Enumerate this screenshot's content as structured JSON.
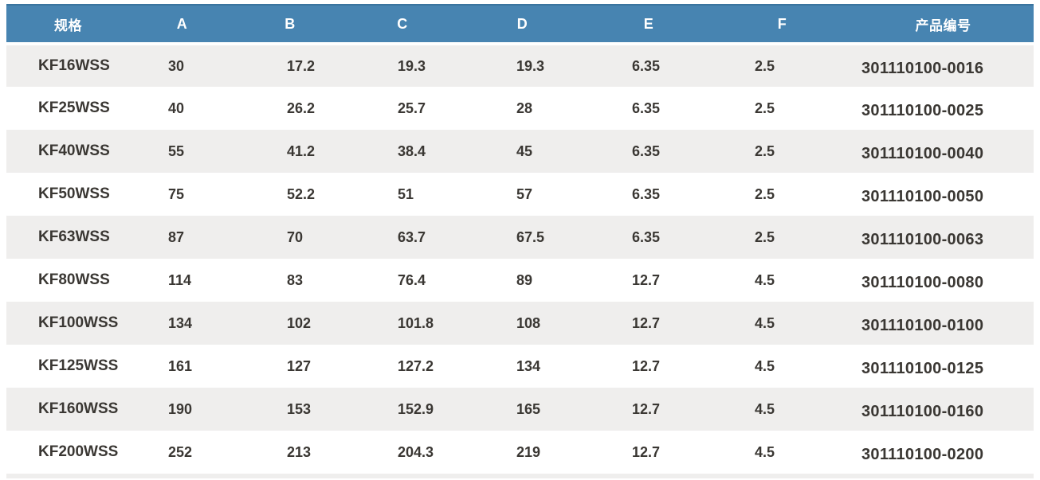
{
  "chart_data": {
    "type": "table",
    "columns": [
      {
        "key": "spec",
        "label": "规格"
      },
      {
        "key": "a",
        "label": "A"
      },
      {
        "key": "b",
        "label": "B"
      },
      {
        "key": "c",
        "label": "C"
      },
      {
        "key": "d",
        "label": "D"
      },
      {
        "key": "e",
        "label": "E"
      },
      {
        "key": "f",
        "label": "F"
      },
      {
        "key": "code",
        "label": "产品编号"
      }
    ],
    "rows": [
      [
        "KF16WSS",
        "30",
        "17.2",
        "19.3",
        "19.3",
        "6.35",
        "2.5",
        "301110100-0016"
      ],
      [
        "KF25WSS",
        "40",
        "26.2",
        "25.7",
        "28",
        "6.35",
        "2.5",
        "301110100-0025"
      ],
      [
        "KF40WSS",
        "55",
        "41.2",
        "38.4",
        "45",
        "6.35",
        "2.5",
        "301110100-0040"
      ],
      [
        "KF50WSS",
        "75",
        "52.2",
        "51",
        "57",
        "6.35",
        "2.5",
        "301110100-0050"
      ],
      [
        "KF63WSS",
        "87",
        "70",
        "63.7",
        "67.5",
        "6.35",
        "2.5",
        "301110100-0063"
      ],
      [
        "KF80WSS",
        "114",
        "83",
        "76.4",
        "89",
        "12.7",
        "4.5",
        "301110100-0080"
      ],
      [
        "KF100WSS",
        "134",
        "102",
        "101.8",
        "108",
        "12.7",
        "4.5",
        "301110100-0100"
      ],
      [
        "KF125WSS",
        "161",
        "127",
        "127.2",
        "134",
        "12.7",
        "4.5",
        "301110100-0125"
      ],
      [
        "KF160WSS",
        "190",
        "153",
        "152.9",
        "165",
        "12.7",
        "4.5",
        "301110100-0160"
      ],
      [
        "KF200WSS",
        "252",
        "213",
        "204.3",
        "219",
        "12.7",
        "4.5",
        "301110100-0200"
      ]
    ],
    "legend": false,
    "grid": false
  },
  "colors": {
    "header_bg": "#4784B1",
    "header_top_edge": "#3A749F",
    "header_text": "#FFFFFF",
    "row_stripe": "#EFEEED",
    "row_white": "#FFFFFF",
    "cell_text": "#3A3733"
  }
}
